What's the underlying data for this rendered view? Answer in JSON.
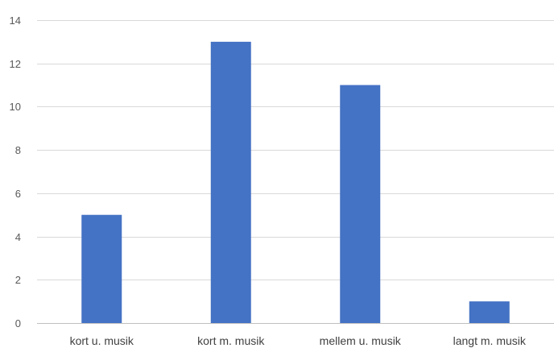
{
  "chart_data": {
    "type": "bar",
    "title": "",
    "xlabel": "",
    "ylabel": "",
    "categories": [
      "kort u. musik",
      "kort m. musik",
      "mellem u. musik",
      "langt m. musik"
    ],
    "values": [
      5,
      13,
      11,
      1
    ],
    "ylim": [
      0,
      14
    ],
    "yticks": [
      0,
      2,
      4,
      6,
      8,
      10,
      12,
      14
    ],
    "grid": true,
    "legend": "none",
    "colors": {
      "bar": "#4472C4",
      "grid": "#D9D9D9",
      "axis": "#BFBFBF"
    }
  }
}
